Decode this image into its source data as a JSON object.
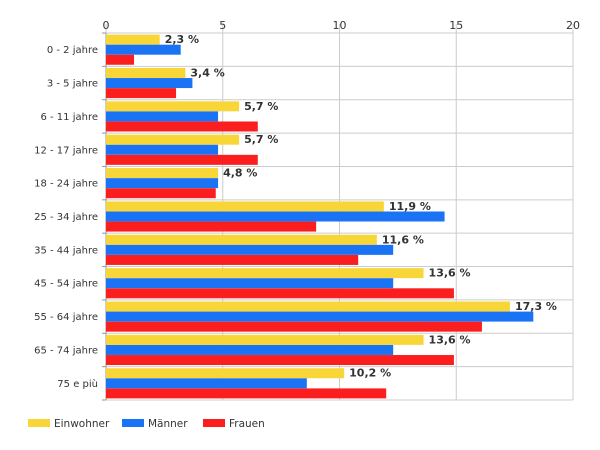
{
  "chart_data": {
    "type": "bar",
    "orientation": "horizontal",
    "categories": [
      "0 - 2 jahre",
      "3 - 5 jahre",
      "6 - 11 jahre",
      "12 - 17 jahre",
      "18 - 24 jahre",
      "25 - 34 jahre",
      "35 - 44 jahre",
      "45 - 54 jahre",
      "55 - 64 jahre",
      "65 - 74 jahre",
      "75 e più"
    ],
    "series": [
      {
        "name": "Einwohner",
        "color": "#f9d637",
        "values": [
          2.3,
          3.4,
          5.7,
          5.7,
          4.8,
          11.9,
          11.6,
          13.6,
          17.3,
          13.6,
          10.2
        ],
        "labels": [
          "2,3 %",
          "3,4 %",
          "5,7 %",
          "5,7 %",
          "4,8 %",
          "11,9 %",
          "11,6 %",
          "13,6 %",
          "17,3 %",
          "13,6 %",
          "10,2 %"
        ]
      },
      {
        "name": "Männer",
        "color": "#1a72f4",
        "values": [
          3.2,
          3.7,
          4.8,
          4.8,
          4.8,
          14.5,
          12.3,
          12.3,
          18.3,
          12.3,
          8.6
        ]
      },
      {
        "name": "Frauen",
        "color": "#fa1e1e",
        "values": [
          1.2,
          3.0,
          6.5,
          6.5,
          4.7,
          9.0,
          10.8,
          14.9,
          16.1,
          14.9,
          12.0
        ]
      }
    ],
    "xlim": [
      0,
      20
    ],
    "xticks": [
      0,
      5,
      10,
      15,
      20
    ],
    "grid": true,
    "legend_position": "bottom-left"
  }
}
